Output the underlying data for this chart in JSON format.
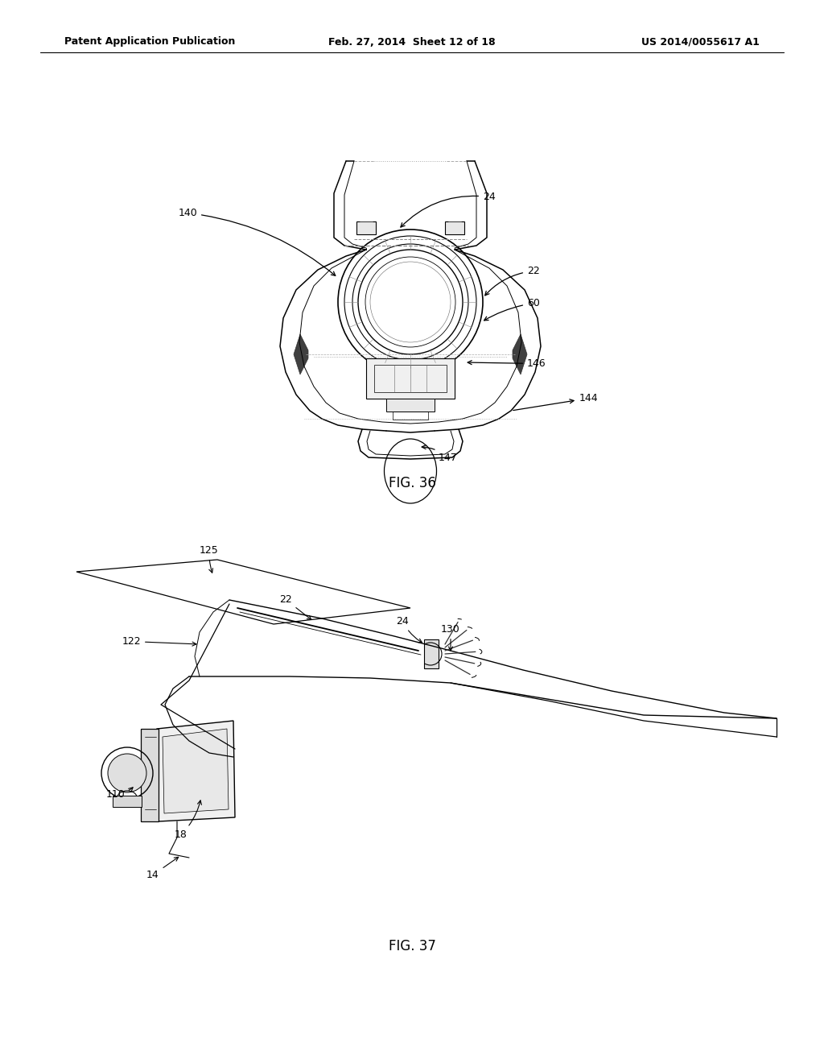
{
  "background_color": "#ffffff",
  "header_left": "Patent Application Publication",
  "header_center": "Feb. 27, 2014  Sheet 12 of 18",
  "header_right": "US 2014/0055617 A1",
  "fig36_label": "FIG. 36",
  "fig37_label": "FIG. 37"
}
